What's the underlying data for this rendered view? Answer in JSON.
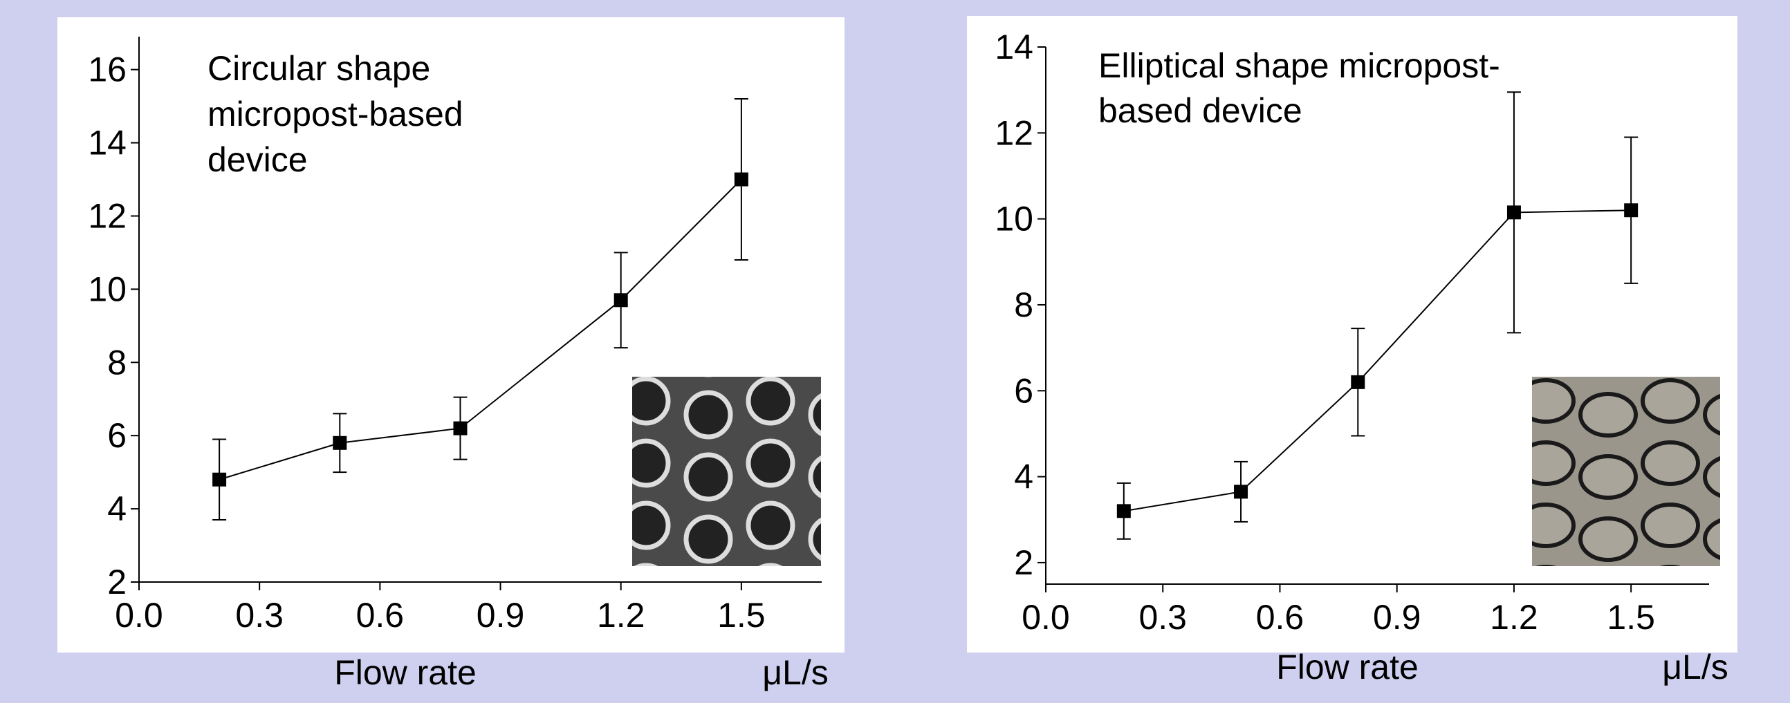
{
  "chart_data": [
    {
      "type": "line",
      "annotation": [
        "Circular shape",
        "micropost-based",
        "device"
      ],
      "xlabel": "Flow rate",
      "xunit": "μL/s",
      "x": [
        0.2,
        0.5,
        0.8,
        1.2,
        1.5
      ],
      "series": [
        {
          "color": "#000000",
          "values": [
            4.8,
            5.8,
            6.2,
            9.7,
            13.0
          ],
          "errors": [
            1.1,
            0.8,
            0.85,
            1.3,
            2.2
          ]
        }
      ],
      "xlim": [
        0,
        1.7
      ],
      "xticks": [
        {
          "value": 0,
          "label": "0.0"
        },
        0.3,
        0.6,
        0.9,
        1.2,
        1.5
      ],
      "ylim": [
        2,
        16.9
      ],
      "yticks": [
        2,
        4,
        6,
        8,
        10,
        12,
        14,
        16
      ]
    },
    {
      "type": "line",
      "annotation": [
        "Elliptical shape micropost-",
        "based device"
      ],
      "xlabel": "Flow rate",
      "xunit": "μL/s",
      "x": [
        0.2,
        0.5,
        0.8,
        1.2,
        1.5
      ],
      "series": [
        {
          "color": "#000000",
          "values": [
            3.2,
            3.65,
            6.2,
            10.15,
            10.2
          ],
          "errors": [
            0.65,
            0.7,
            1.25,
            2.8,
            1.7
          ]
        }
      ],
      "xlim": [
        0,
        1.7
      ],
      "xticks": [
        {
          "value": 0,
          "label": "0.0"
        },
        0.3,
        0.6,
        0.9,
        1.2,
        1.5
      ],
      "ylim": [
        1.5,
        14
      ],
      "yticks": [
        2,
        4,
        6,
        8,
        10,
        12,
        14
      ]
    }
  ]
}
